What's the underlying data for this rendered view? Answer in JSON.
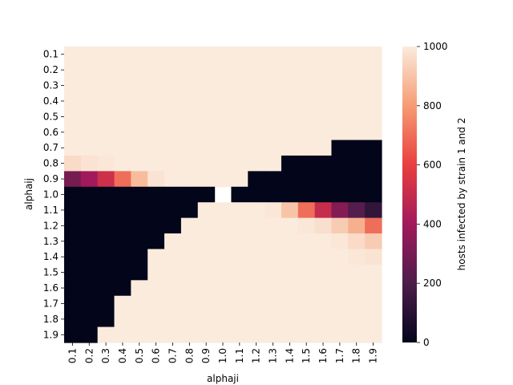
{
  "chart_data": {
    "type": "heatmap",
    "title": "",
    "xlabel": "alphaji",
    "ylabel": "alphaij",
    "x_categories": [
      "0.1",
      "0.2",
      "0.3",
      "0.4",
      "0.5",
      "0.6",
      "0.7",
      "0.8",
      "0.9",
      "1.0",
      "1.1",
      "1.2",
      "1.3",
      "1.4",
      "1.5",
      "1.6",
      "1.7",
      "1.8",
      "1.9"
    ],
    "y_categories": [
      "0.1",
      "0.2",
      "0.3",
      "0.4",
      "0.5",
      "0.6",
      "0.7",
      "0.8",
      "0.9",
      "1.0",
      "1.1",
      "1.2",
      "1.3",
      "1.4",
      "1.5",
      "1.6",
      "1.7",
      "1.8",
      "1.9"
    ],
    "colorbar": {
      "label": "hosts infected by strain 1 and 2",
      "range": [
        0,
        1000
      ],
      "ticks": [
        0,
        200,
        400,
        600,
        800,
        1000
      ],
      "colormap": "rocket",
      "colors": [
        "#03051a",
        "#4c1d4b",
        "#a11a5b",
        "#e83f3f",
        "#f69c73",
        "#faebdd"
      ]
    },
    "values": [
      [
        1000,
        1000,
        1000,
        1000,
        1000,
        1000,
        1000,
        1000,
        1000,
        1000,
        1000,
        1000,
        1000,
        1000,
        1000,
        1000,
        1000,
        1000,
        1000
      ],
      [
        1000,
        1000,
        1000,
        1000,
        1000,
        1000,
        1000,
        1000,
        1000,
        1000,
        1000,
        1000,
        1000,
        1000,
        1000,
        1000,
        1000,
        1000,
        1000
      ],
      [
        1000,
        1000,
        1000,
        1000,
        1000,
        1000,
        1000,
        1000,
        1000,
        1000,
        1000,
        1000,
        1000,
        1000,
        1000,
        1000,
        1000,
        1000,
        1000
      ],
      [
        1000,
        1000,
        1000,
        1000,
        1000,
        1000,
        1000,
        1000,
        1000,
        1000,
        1000,
        1000,
        1000,
        1000,
        1000,
        1000,
        1000,
        1000,
        1000
      ],
      [
        1000,
        1000,
        1000,
        1000,
        1000,
        1000,
        1000,
        1000,
        1000,
        1000,
        1000,
        1000,
        1000,
        1000,
        1000,
        1000,
        1000,
        1000,
        1000
      ],
      [
        1000,
        1000,
        1000,
        1000,
        1000,
        1000,
        1000,
        1000,
        1000,
        1000,
        1000,
        1000,
        1000,
        1000,
        1000,
        1000,
        1000,
        1000,
        1000
      ],
      [
        1000,
        1000,
        1000,
        1000,
        1000,
        1000,
        1000,
        1000,
        1000,
        1000,
        1000,
        1000,
        1000,
        1000,
        1000,
        1000,
        0,
        0,
        0
      ],
      [
        960,
        980,
        990,
        1000,
        1000,
        1000,
        1000,
        1000,
        1000,
        1000,
        1000,
        1000,
        1000,
        0,
        0,
        0,
        0,
        0,
        0
      ],
      [
        300,
        400,
        520,
        700,
        880,
        980,
        1000,
        1000,
        1000,
        1000,
        1000,
        0,
        0,
        0,
        0,
        0,
        0,
        0,
        0
      ],
      [
        0,
        0,
        0,
        0,
        0,
        0,
        0,
        0,
        0,
        null,
        0,
        0,
        0,
        0,
        0,
        0,
        0,
        0,
        0
      ],
      [
        0,
        0,
        0,
        0,
        0,
        0,
        0,
        0,
        1000,
        1000,
        1000,
        1000,
        990,
        900,
        700,
        500,
        330,
        220,
        130
      ],
      [
        0,
        0,
        0,
        0,
        0,
        0,
        0,
        1000,
        1000,
        1000,
        1000,
        1000,
        1000,
        1000,
        990,
        970,
        920,
        850,
        700
      ],
      [
        0,
        0,
        0,
        0,
        0,
        0,
        1000,
        1000,
        1000,
        1000,
        1000,
        1000,
        1000,
        1000,
        1000,
        1000,
        990,
        960,
        920
      ],
      [
        0,
        0,
        0,
        0,
        0,
        1000,
        1000,
        1000,
        1000,
        1000,
        1000,
        1000,
        1000,
        1000,
        1000,
        1000,
        1000,
        990,
        980
      ],
      [
        0,
        0,
        0,
        0,
        0,
        1000,
        1000,
        1000,
        1000,
        1000,
        1000,
        1000,
        1000,
        1000,
        1000,
        1000,
        1000,
        1000,
        1000
      ],
      [
        0,
        0,
        0,
        0,
        1000,
        1000,
        1000,
        1000,
        1000,
        1000,
        1000,
        1000,
        1000,
        1000,
        1000,
        1000,
        1000,
        1000,
        1000
      ],
      [
        0,
        0,
        0,
        1000,
        1000,
        1000,
        1000,
        1000,
        1000,
        1000,
        1000,
        1000,
        1000,
        1000,
        1000,
        1000,
        1000,
        1000,
        1000
      ],
      [
        0,
        0,
        0,
        1000,
        1000,
        1000,
        1000,
        1000,
        1000,
        1000,
        1000,
        1000,
        1000,
        1000,
        1000,
        1000,
        1000,
        1000,
        1000
      ],
      [
        0,
        0,
        1000,
        1000,
        1000,
        1000,
        1000,
        1000,
        1000,
        1000,
        1000,
        1000,
        1000,
        1000,
        1000,
        1000,
        1000,
        1000,
        1000
      ]
    ]
  }
}
